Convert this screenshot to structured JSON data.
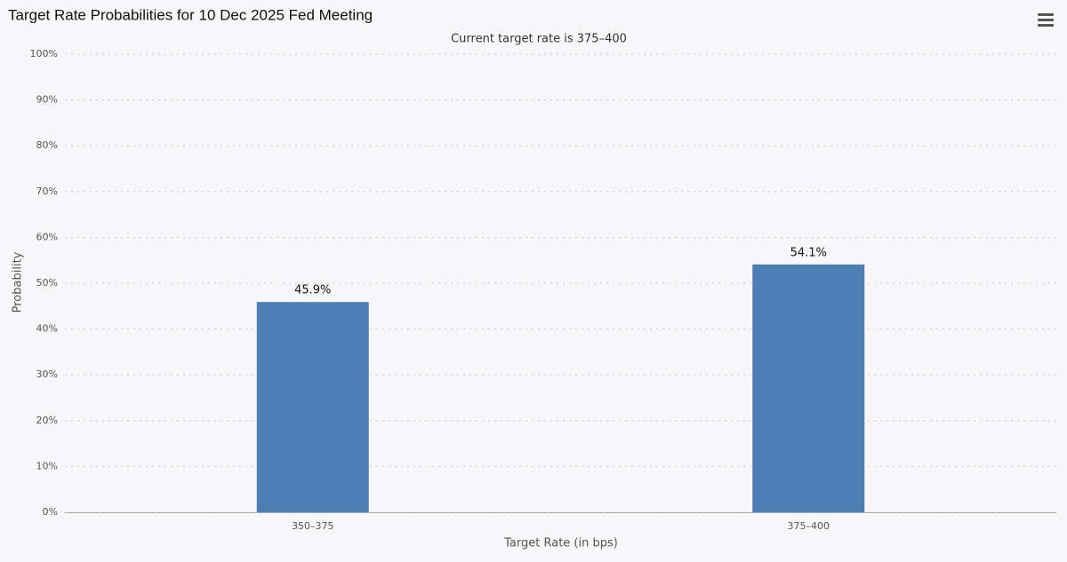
{
  "chart_data": {
    "type": "bar",
    "title": "Target Rate Probabilities for 10 Dec 2025 Fed Meeting",
    "subtitle": "Current target rate is 375–400",
    "x_label": "Target Rate (in bps)",
    "y_label": "Probability",
    "categories": [
      "350–375",
      "375–400"
    ],
    "values": [
      45.9,
      54.1
    ],
    "value_labels": [
      "45.9%",
      "54.1%"
    ],
    "color": "#4e7fb4",
    "ylim": [
      0,
      100
    ],
    "yticks": [
      {
        "value": 0,
        "label": "0%"
      },
      {
        "value": 10,
        "label": "10%"
      },
      {
        "value": 20,
        "label": "20%"
      },
      {
        "value": 30,
        "label": "30%"
      },
      {
        "value": 40,
        "label": "40%"
      },
      {
        "value": 50,
        "label": "50%"
      },
      {
        "value": 60,
        "label": "60%"
      },
      {
        "value": 70,
        "label": "70%"
      },
      {
        "value": 80,
        "label": "80%"
      },
      {
        "value": 90,
        "label": "90%"
      },
      {
        "value": 100,
        "label": "100%"
      }
    ],
    "grid": true
  }
}
